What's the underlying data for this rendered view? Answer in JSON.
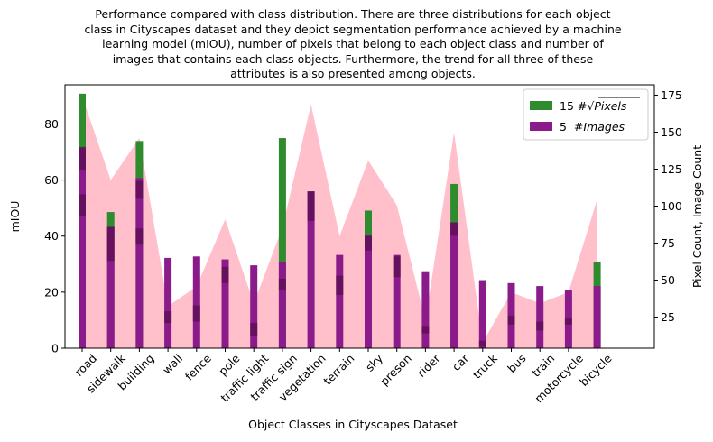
{
  "chart_data": {
    "type": "bar",
    "title_lines": [
      "Performance compared with class distribution. There are three distributions for each object",
      "class in Cityscapes dataset and they depict segmentation performance achieved by a machine",
      "learning model (mIOU), number of pixels that belong to each object class and number of",
      "images that contains each class objects. Furthermore, the trend for all three of these",
      "attributes is also presented among objects."
    ],
    "xlabel": "Object Classes in Cityscapes Dataset",
    "ylabel_left": "mIOU",
    "ylabel_right": "Pixel Count, Image Count",
    "categories": [
      "road",
      "sidewalk",
      "building",
      "wall",
      "fence",
      "pole",
      "traffic light",
      "traffic sign",
      "vegetation",
      "terrain",
      "sky",
      "preson",
      "rider",
      "car",
      "truck",
      "bus",
      "train",
      "motorcycle",
      "bicycle"
    ],
    "ylim_left": [
      0,
      94
    ],
    "yticks_left": [
      0,
      20,
      40,
      60,
      80
    ],
    "ylim_right": [
      4,
      182
    ],
    "yticks_right": [
      25,
      50,
      75,
      100,
      125,
      150,
      175
    ],
    "series": [
      {
        "name": "mIOU",
        "axis": "left",
        "style": "area",
        "color": "#ffc0cb",
        "values": [
          90,
          60,
          75,
          15,
          22,
          46,
          16,
          43,
          87,
          40,
          67,
          51,
          10,
          77,
          2,
          20,
          16,
          20,
          53
        ]
      },
      {
        "name": "15 #√Pixels",
        "label_prefix": "15 #",
        "label_radicand": "Pixels",
        "axis": "right",
        "style": "bar",
        "color": "#2e8b2e",
        "values": [
          176,
          96,
          144,
          0,
          0,
          0,
          0,
          146,
          0,
          0,
          97,
          0,
          0,
          115,
          0,
          0,
          0,
          0,
          62
        ]
      },
      {
        "name": "5  #Images",
        "label_prefix": "5  #",
        "label_var": "Images",
        "axis": "right",
        "style": "bar",
        "color": "#8b1a8b",
        "values": [
          139,
          86,
          119,
          65,
          66,
          64,
          60,
          62,
          110,
          67,
          80,
          67,
          56,
          89,
          50,
          48,
          46,
          43,
          46
        ]
      }
    ],
    "dark_segments_right_axis": [
      [
        [
          93,
          108
        ],
        [
          124,
          140
        ]
      ],
      [
        [
          63,
          86
        ]
      ],
      [
        [
          74,
          85
        ],
        [
          105,
          117
        ]
      ],
      [
        [
          21,
          29
        ]
      ],
      [
        [
          22,
          33
        ]
      ],
      [
        [
          48,
          59
        ]
      ],
      [
        [
          12,
          21
        ]
      ],
      [
        [
          43,
          51
        ]
      ],
      [
        [
          90,
          110
        ]
      ],
      [
        [
          40,
          53
        ]
      ],
      [
        [
          70,
          80
        ]
      ],
      [
        [
          52,
          66
        ]
      ],
      [
        [
          14,
          19
        ]
      ],
      [
        [
          80,
          89
        ]
      ],
      [
        [
          5,
          9
        ]
      ],
      [
        [
          20,
          26
        ]
      ],
      [
        [
          16,
          22
        ]
      ],
      [
        [
          20,
          24
        ]
      ],
      []
    ],
    "legend_position": "top-right",
    "grid": false
  }
}
